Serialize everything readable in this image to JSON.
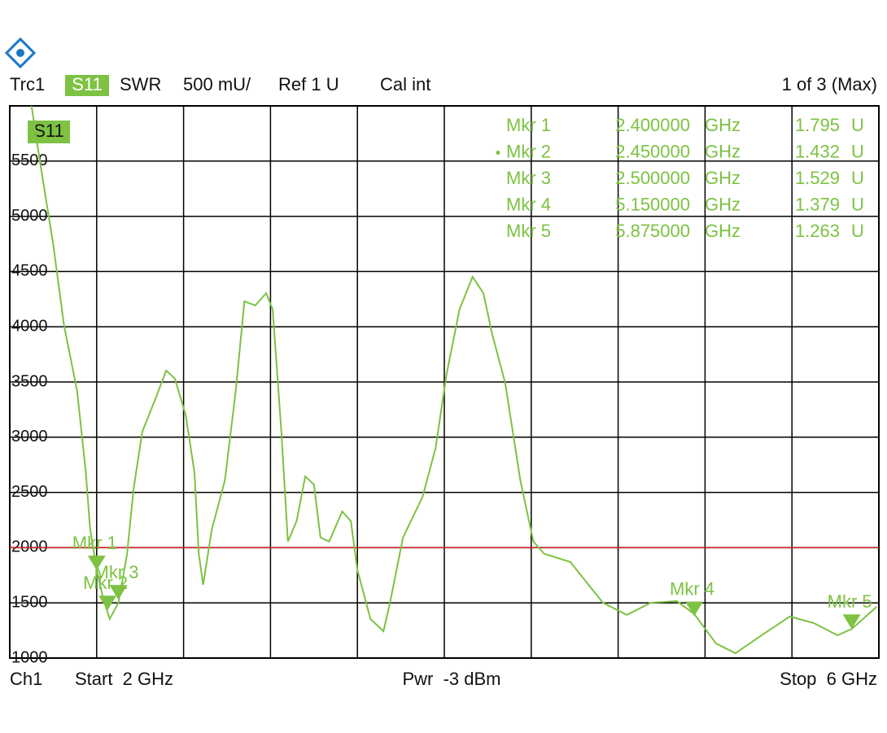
{
  "chart_data": {
    "type": "line",
    "header": {
      "trace": "Trc1",
      "param": "S11",
      "format": "SWR",
      "scale": "500 mU/",
      "ref": "Ref 1 U",
      "cal": "Cal int",
      "page": "1 of 3 (Max)"
    },
    "footer": {
      "channel": "Ch1",
      "start": "Start  2 GHz",
      "power": "Pwr  -3 dBm",
      "stop": "Stop  6 GHz"
    },
    "trace_label": "S11",
    "xlim": [
      2,
      6
    ],
    "xticks": [
      2,
      2.4,
      2.8,
      3.2,
      3.6,
      4,
      4.4,
      4.8,
      5.2,
      5.6,
      6
    ],
    "ylim": [
      1000,
      6000
    ],
    "yticks": [
      1000,
      1500,
      2000,
      2500,
      3000,
      3500,
      4000,
      4500,
      5000,
      5500
    ],
    "grid": true,
    "ref_line": {
      "value": 2000,
      "color": "#d42020"
    },
    "series": [
      {
        "name": "S11",
        "color": "#7dc242",
        "x": [
          2.1,
          2.14,
          2.2,
          2.25,
          2.31,
          2.35,
          2.37,
          2.4,
          2.43,
          2.46,
          2.5,
          2.54,
          2.57,
          2.61,
          2.67,
          2.72,
          2.76,
          2.81,
          2.85,
          2.87,
          2.89,
          2.93,
          2.99,
          3.04,
          3.08,
          3.13,
          3.18,
          3.21,
          3.25,
          3.28,
          3.32,
          3.36,
          3.4,
          3.43,
          3.47,
          3.53,
          3.57,
          3.6,
          3.66,
          3.72,
          3.75,
          3.81,
          3.9,
          3.96,
          4.01,
          4.07,
          4.13,
          4.18,
          4.22,
          4.28,
          4.35,
          4.41,
          4.46,
          4.58,
          4.73,
          4.84,
          4.95,
          5.07,
          5.15,
          5.25,
          5.34,
          5.46,
          5.59,
          5.7,
          5.81,
          5.875,
          5.99
        ],
        "values": [
          6000,
          5484,
          4746,
          4009,
          3419,
          2682,
          2165,
          1800,
          1538,
          1354,
          1500,
          1944,
          2534,
          3050,
          3345,
          3603,
          3530,
          3198,
          2682,
          1944,
          1664,
          2165,
          2608,
          3419,
          4230,
          4193,
          4304,
          4157,
          3050,
          2055,
          2239,
          2645,
          2571,
          2092,
          2055,
          2328,
          2239,
          1797,
          1354,
          1243,
          1501,
          2092,
          2460,
          2903,
          3567,
          4157,
          4452,
          4304,
          3935,
          3493,
          2608,
          2055,
          1944,
          1870,
          1501,
          1391,
          1501,
          1516,
          1400,
          1133,
          1044,
          1206,
          1376,
          1317,
          1206,
          1263,
          1465
        ]
      }
    ],
    "markers": [
      {
        "name": "Mkr 1",
        "x": 2.4,
        "x_label": "2.400000",
        "x_unit": "GHz",
        "value": 1795,
        "value_label": "1.795",
        "value_unit": "U",
        "active": false
      },
      {
        "name": "Mkr 2",
        "x": 2.45,
        "x_label": "2.450000",
        "x_unit": "GHz",
        "value": 1432,
        "value_label": "1.432",
        "value_unit": "U",
        "active": true
      },
      {
        "name": "Mkr 3",
        "x": 2.5,
        "x_label": "2.500000",
        "x_unit": "GHz",
        "value": 1529,
        "value_label": "1.529",
        "value_unit": "U",
        "active": false
      },
      {
        "name": "Mkr 4",
        "x": 5.15,
        "x_label": "5.150000",
        "x_unit": "GHz",
        "value": 1379,
        "value_label": "1.379",
        "value_unit": "U",
        "active": false
      },
      {
        "name": "Mkr 5",
        "x": 5.875,
        "x_label": "5.875000",
        "x_unit": "GHz",
        "value": 1263,
        "value_label": "1.263",
        "value_unit": "U",
        "active": false
      }
    ]
  }
}
